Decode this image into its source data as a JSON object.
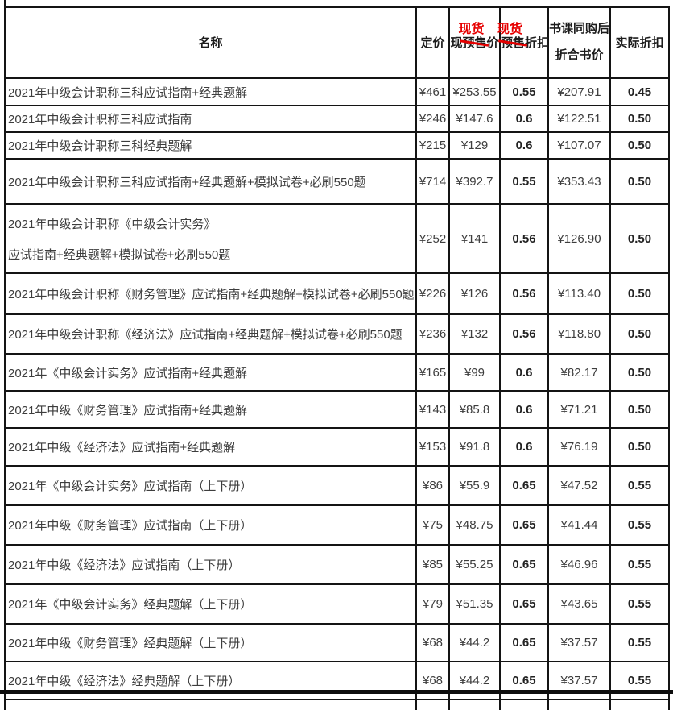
{
  "colors": {
    "accent_red": "#e60000"
  },
  "table": {
    "header": {
      "name": "名称",
      "list_price": "定价",
      "sale_price": {
        "prefix": "现",
        "struck": "预售",
        "suffix": "价",
        "overlay": "现货"
      },
      "sale_discount": {
        "struck": "预售",
        "suffix": "折扣",
        "overlay": "现货"
      },
      "bundle_price_line1": "书课同购后",
      "bundle_price_line2": "折合书价",
      "actual_discount": "实际折扣"
    },
    "rows": [
      {
        "name": "2021年中级会计职称三科应试指南+经典题解",
        "list_price": "¥461",
        "sale_price": "¥253.55",
        "sale_discount": "0.55",
        "bundle_price": "¥207.91",
        "actual_discount": "0.45"
      },
      {
        "name": "2021年中级会计职称三科应试指南",
        "list_price": "¥246",
        "sale_price": "¥147.6",
        "sale_discount": "0.6",
        "bundle_price": "¥122.51",
        "actual_discount": "0.50"
      },
      {
        "name": "2021年中级会计职称三科经典题解",
        "list_price": "¥215",
        "sale_price": "¥129",
        "sale_discount": "0.6",
        "bundle_price": "¥107.07",
        "actual_discount": "0.50"
      },
      {
        "name": "2021年中级会计职称三科应试指南+经典题解+模拟试卷+必刷550题",
        "list_price": "¥714",
        "sale_price": "¥392.7",
        "sale_discount": "0.55",
        "bundle_price": "¥353.43",
        "actual_discount": "0.50"
      },
      {
        "name": "2021年中级会计职称《中级会计实务》",
        "name_line2": "应试指南+经典题解+模拟试卷+必刷550题",
        "list_price": "¥252",
        "sale_price": "¥141",
        "sale_discount": "0.56",
        "bundle_price": "¥126.90",
        "actual_discount": "0.50"
      },
      {
        "name": "2021年中级会计职称《财务管理》应试指南+经典题解+模拟试卷+必刷550题",
        "list_price": "¥226",
        "sale_price": "¥126",
        "sale_discount": "0.56",
        "bundle_price": "¥113.40",
        "actual_discount": "0.50"
      },
      {
        "name": "2021年中级会计职称《经济法》应试指南+经典题解+模拟试卷+必刷550题",
        "list_price": "¥236",
        "sale_price": "¥132",
        "sale_discount": "0.56",
        "bundle_price": "¥118.80",
        "actual_discount": "0.50"
      },
      {
        "name": "2021年《中级会计实务》应试指南+经典题解",
        "list_price": "¥165",
        "sale_price": "¥99",
        "sale_discount": "0.6",
        "bundle_price": "¥82.17",
        "actual_discount": "0.50"
      },
      {
        "name": "2021年中级《财务管理》应试指南+经典题解",
        "list_price": "¥143",
        "sale_price": "¥85.8",
        "sale_discount": "0.6",
        "bundle_price": "¥71.21",
        "actual_discount": "0.50"
      },
      {
        "name": "2021年中级《经济法》应试指南+经典题解",
        "list_price": "¥153",
        "sale_price": "¥91.8",
        "sale_discount": "0.6",
        "bundle_price": "¥76.19",
        "actual_discount": "0.50"
      },
      {
        "name": "2021年《中级会计实务》应试指南（上下册）",
        "list_price": "¥86",
        "sale_price": "¥55.9",
        "sale_discount": "0.65",
        "bundle_price": "¥47.52",
        "actual_discount": "0.55"
      },
      {
        "name": "2021年中级《财务管理》应试指南（上下册）",
        "list_price": "¥75",
        "sale_price": "¥48.75",
        "sale_discount": "0.65",
        "bundle_price": "¥41.44",
        "actual_discount": "0.55"
      },
      {
        "name": "2021年中级《经济法》应试指南（上下册）",
        "list_price": "¥85",
        "sale_price": "¥55.25",
        "sale_discount": "0.65",
        "bundle_price": "¥46.96",
        "actual_discount": "0.55"
      },
      {
        "name": "2021年《中级会计实务》经典题解（上下册）",
        "list_price": "¥79",
        "sale_price": "¥51.35",
        "sale_discount": "0.65",
        "bundle_price": "¥43.65",
        "actual_discount": "0.55"
      },
      {
        "name": "2021年中级《财务管理》经典题解（上下册）",
        "list_price": "¥68",
        "sale_price": "¥44.2",
        "sale_discount": "0.65",
        "bundle_price": "¥37.57",
        "actual_discount": "0.55"
      },
      {
        "name": "2021年中级《经济法》经典题解（上下册）",
        "list_price": "¥68",
        "sale_price": "¥44.2",
        "sale_discount": "0.65",
        "bundle_price": "¥37.57",
        "actual_discount": "0.55"
      }
    ]
  }
}
